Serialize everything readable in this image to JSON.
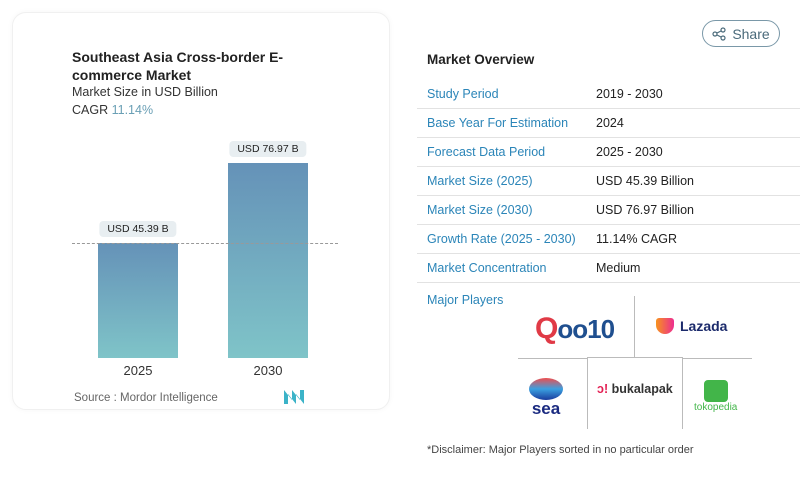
{
  "share_label": "Share",
  "chart_data": {
    "type": "bar",
    "title": "Southeast Asia Cross-border E-commerce Market",
    "subtitle": "Market Size in USD Billion",
    "cagr_label": "CAGR",
    "cagr_value": "11.14%",
    "categories": [
      "2025",
      "2030"
    ],
    "values": [
      45.39,
      76.97
    ],
    "data_labels": [
      "USD 45.39 B",
      "USD 76.97 B"
    ],
    "ylim": [
      0,
      80
    ],
    "grid": false,
    "colors": {
      "bar_top": "#6592b8",
      "bar_bottom": "#7fc4c8"
    },
    "source": "Source :  Mordor Intelligence"
  },
  "overview": {
    "title": "Market Overview",
    "rows": [
      {
        "label": "Study Period",
        "value": "2019 - 2030"
      },
      {
        "label": "Base Year For Estimation",
        "value": "2024"
      },
      {
        "label": "Forecast Data Period",
        "value": "2025 - 2030"
      },
      {
        "label": "Market Size (2025)",
        "value": "USD 45.39 Billion"
      },
      {
        "label": "Market Size (2030)",
        "value": "USD 76.97 Billion"
      },
      {
        "label": "Growth Rate (2025 - 2030)",
        "value": "11.14% CAGR"
      },
      {
        "label": "Market Concentration",
        "value": "Medium"
      }
    ]
  },
  "players": {
    "title": "Major Players",
    "logos": [
      "Qoo10",
      "Lazada",
      "sea",
      "bukalapak",
      "tokopedia"
    ],
    "disclaimer": "*Disclaimer: Major Players sorted in no particular order"
  }
}
